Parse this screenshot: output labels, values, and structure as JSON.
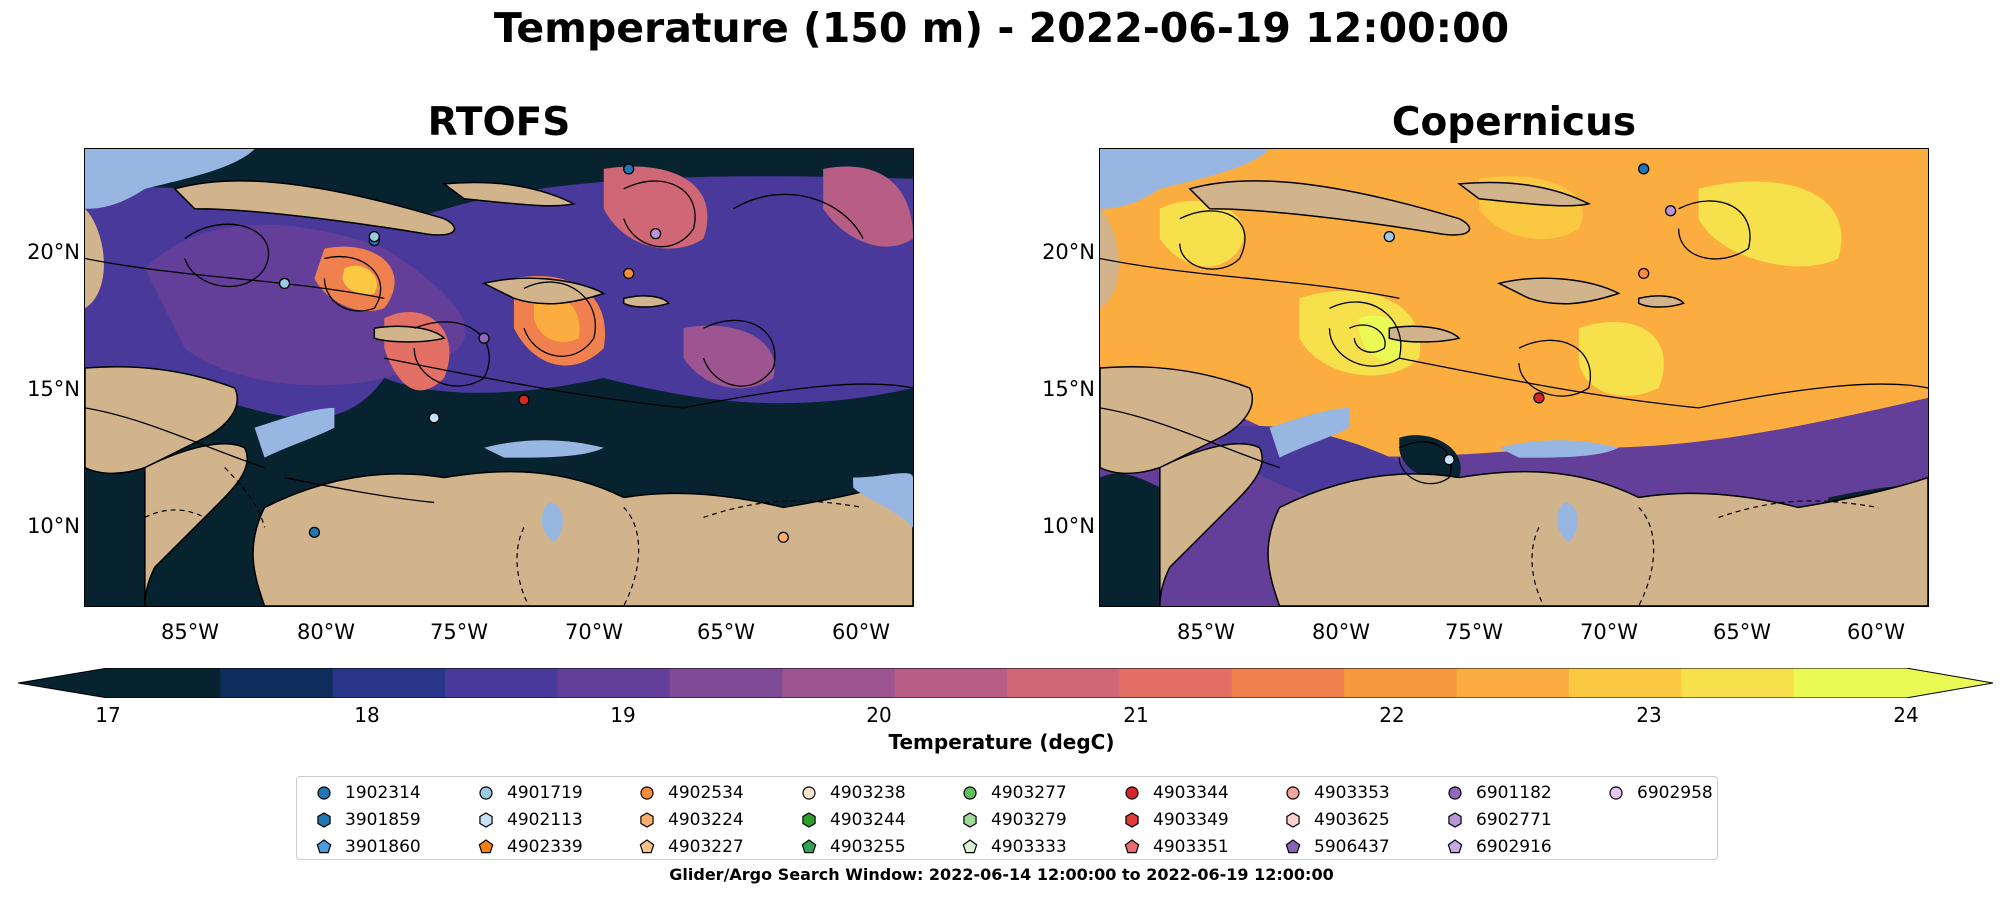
{
  "figure": {
    "title": "Temperature (150 m) - 2022-06-19 12:00:00",
    "panels": [
      {
        "title": "RTOFS"
      },
      {
        "title": "Copernicus"
      }
    ]
  },
  "axes": {
    "x_ticks": [
      "85°W",
      "80°W",
      "75°W",
      "70°W",
      "65°W",
      "60°W"
    ],
    "y_ticks": [
      "20°N",
      "15°N",
      "10°N"
    ]
  },
  "colorbar": {
    "label": "Temperature (degC)",
    "ticks": [
      "17",
      "18",
      "19",
      "20",
      "21",
      "22",
      "23",
      "24"
    ],
    "extend": "both",
    "colors": [
      "#082330",
      "#0f2e5d",
      "#273688",
      "#48399a",
      "#643f9a",
      "#814a97",
      "#9c5591",
      "#b85e84",
      "#cf6776",
      "#e27064",
      "#f0814f",
      "#f7983f",
      "#fbae3f",
      "#fbc842",
      "#f6e04c",
      "#ebf955"
    ]
  },
  "legend": {
    "items": [
      {
        "id": "1902314",
        "color": "#1f77b4",
        "marker": "circle"
      },
      {
        "id": "3901859",
        "color": "#1f77b4",
        "marker": "hexagon"
      },
      {
        "id": "3901860",
        "color": "#4a9be0",
        "marker": "pentagon"
      },
      {
        "id": "4901719",
        "color": "#9ecae1",
        "marker": "circle"
      },
      {
        "id": "4902113",
        "color": "#c6e2f7",
        "marker": "hexagon"
      },
      {
        "id": "4902339",
        "color": "#ff7f0e",
        "marker": "pentagon"
      },
      {
        "id": "4902534",
        "color": "#fd8d3c",
        "marker": "circle"
      },
      {
        "id": "4903224",
        "color": "#fdae6b",
        "marker": "hexagon"
      },
      {
        "id": "4903227",
        "color": "#fdc38d",
        "marker": "pentagon"
      },
      {
        "id": "4903238",
        "color": "#fee6ce",
        "marker": "circle"
      },
      {
        "id": "4903244",
        "color": "#2ca02c",
        "marker": "hexagon"
      },
      {
        "id": "4903255",
        "color": "#31a354",
        "marker": "pentagon"
      },
      {
        "id": "4903277",
        "color": "#5cc15c",
        "marker": "circle"
      },
      {
        "id": "4903279",
        "color": "#a1d99b",
        "marker": "hexagon"
      },
      {
        "id": "4903333",
        "color": "#d9f0d3",
        "marker": "pentagon"
      },
      {
        "id": "4903344",
        "color": "#d62728",
        "marker": "circle"
      },
      {
        "id": "4903349",
        "color": "#e03b3b",
        "marker": "hexagon"
      },
      {
        "id": "4903351",
        "color": "#ef6b6b",
        "marker": "pentagon"
      },
      {
        "id": "4903353",
        "color": "#f4a3a3",
        "marker": "circle"
      },
      {
        "id": "4903625",
        "color": "#fcd0d0",
        "marker": "hexagon"
      },
      {
        "id": "5906437",
        "color": "#8c62b8",
        "marker": "pentagon"
      },
      {
        "id": "6901182",
        "color": "#9467bd",
        "marker": "circle"
      },
      {
        "id": "6902771",
        "color": "#b996d8",
        "marker": "hexagon"
      },
      {
        "id": "6902916",
        "color": "#c9a6e8",
        "marker": "pentagon"
      },
      {
        "id": "6902958",
        "color": "#e4c8f5",
        "marker": "circle"
      }
    ],
    "search_window": "Glider/Argo Search Window: 2022-06-14 12:00:00 to 2022-06-19 12:00:00"
  },
  "map_colors": {
    "land": "#d2b48c",
    "shallow_ocean": "#97b6e1",
    "cold": "#082330",
    "coast": "#000000"
  }
}
